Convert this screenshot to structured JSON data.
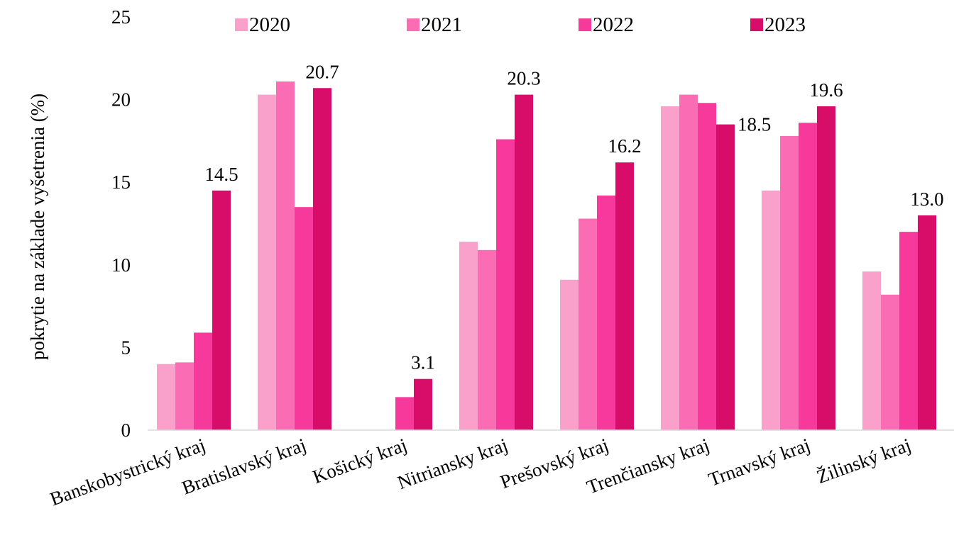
{
  "chart_data": {
    "type": "bar",
    "title": "",
    "xlabel": "",
    "ylabel": "pokrytie na základe vyšetrenia (%)",
    "ylim": [
      0,
      25
    ],
    "yticks": [
      0,
      5,
      10,
      15,
      20,
      25
    ],
    "grid": false,
    "legend_position": "top",
    "categories": [
      "Banskobystrický kraj",
      "Bratislavský kraj",
      "Košický kraj",
      "Nitriansky kraj",
      "Prešovský kraj",
      "Trenčiansky kraj",
      "Trnavský kraj",
      "Žilinský kraj"
    ],
    "series": [
      {
        "name": "2020",
        "color": "#F9A0CB",
        "values": [
          4.0,
          20.3,
          0,
          11.4,
          9.1,
          19.6,
          14.5,
          9.6
        ]
      },
      {
        "name": "2021",
        "color": "#FA6DB4",
        "values": [
          4.1,
          21.1,
          0,
          10.9,
          12.8,
          20.3,
          17.8,
          8.2
        ]
      },
      {
        "name": "2022",
        "color": "#F6399A",
        "values": [
          5.9,
          13.5,
          2.0,
          17.6,
          14.2,
          19.8,
          18.6,
          12.0
        ]
      },
      {
        "name": "2023",
        "color": "#D80D6A",
        "values": [
          14.5,
          20.7,
          3.1,
          20.3,
          16.2,
          18.5,
          19.6,
          13.0
        ]
      }
    ],
    "data_labels": {
      "series": "2023",
      "values": [
        "14.5",
        "20.7",
        "3.1",
        "20.3",
        "16.2",
        "18.5",
        "19.6",
        "13.0"
      ]
    }
  }
}
